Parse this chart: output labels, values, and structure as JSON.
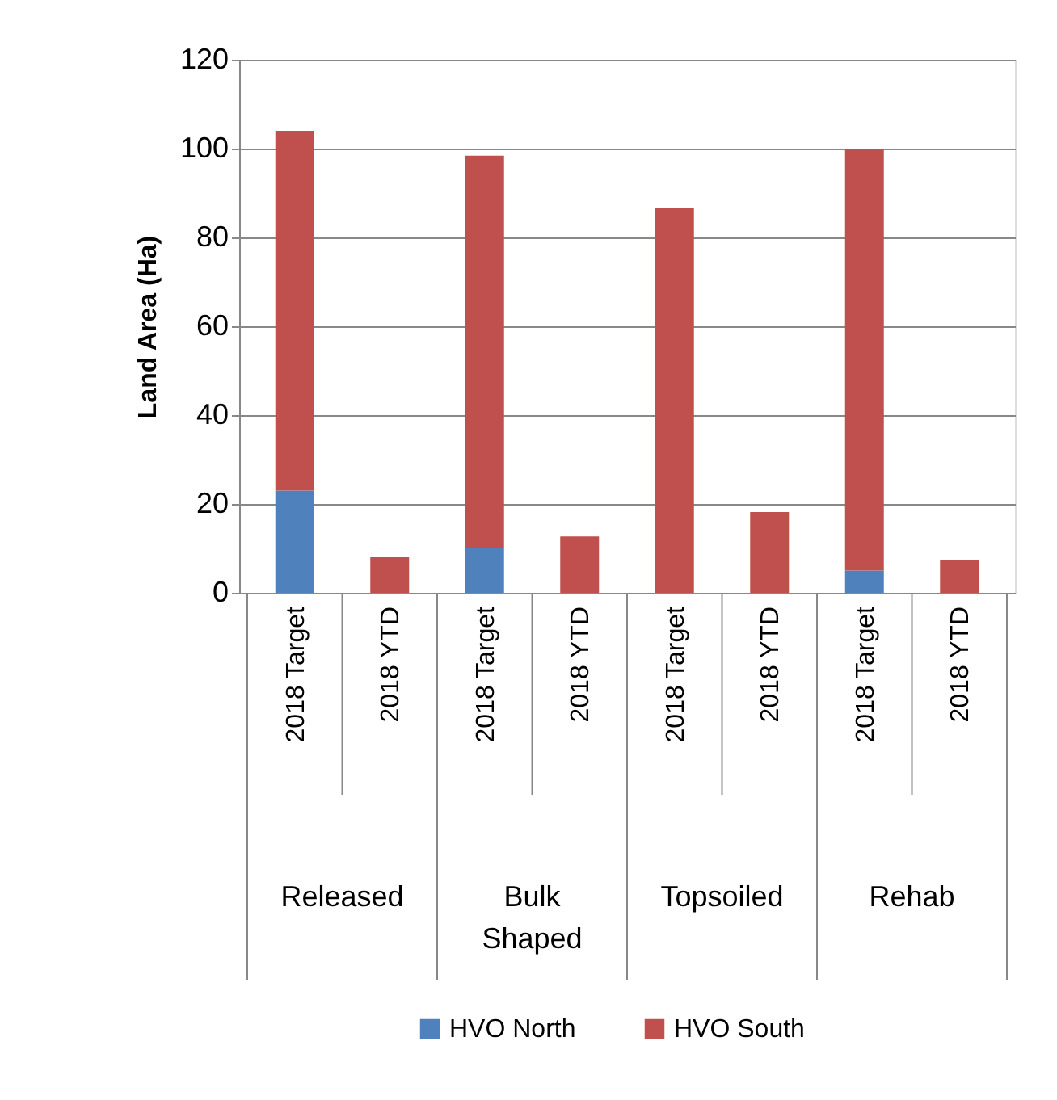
{
  "chart_data": {
    "type": "bar",
    "stacked": true,
    "ylabel": "Land Area (Ha)",
    "categories": [
      "2018 Target",
      "2018 YTD",
      "2018 Target",
      "2018 YTD",
      "2018 Target",
      "2018 YTD",
      "2018 Target",
      "2018 YTD"
    ],
    "series": [
      {
        "name": "HVO North",
        "color": "#4f81bd",
        "values": [
          23,
          null,
          10,
          null,
          null,
          null,
          5,
          null
        ]
      },
      {
        "name": "HVO South",
        "color": "#c0504d",
        "values": [
          81,
          8,
          88.4,
          12.7,
          86.7,
          18.2,
          95,
          7.3
        ]
      }
    ],
    "annotations": [
      "Released",
      "Bulk Shaped",
      "Topsoiled",
      "Rehab"
    ],
    "ylim": [
      0,
      120
    ],
    "yticks": [
      0,
      20,
      40,
      60,
      80,
      100,
      120
    ],
    "grid": "y",
    "legend": "bottom"
  }
}
